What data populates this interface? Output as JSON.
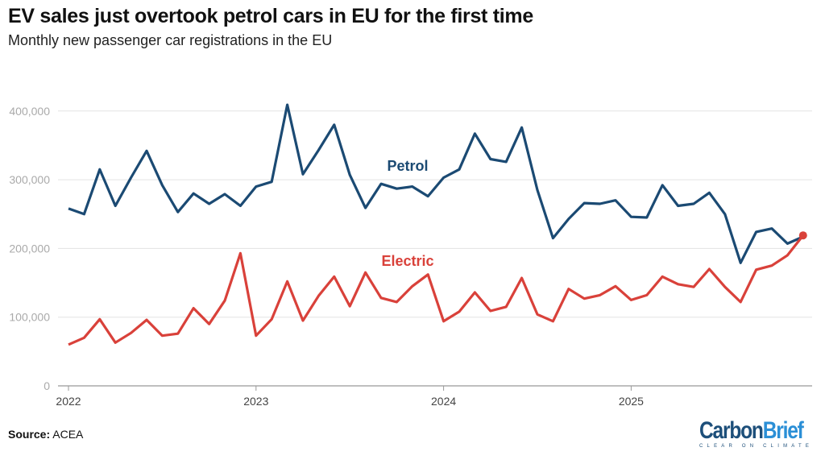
{
  "title": "EV sales just overtook petrol cars in EU for the first time",
  "subtitle": "Monthly new passenger car registrations in the EU",
  "source_label": "Source:",
  "source_value": "ACEA",
  "logo": {
    "brand_part1": "Carbon",
    "brand_part2": "Brief",
    "tagline": "CLEAR ON CLIMATE"
  },
  "chart_data": {
    "type": "line",
    "title": "EV sales just overtook petrol cars in EU for the first time",
    "subtitle": "Monthly new passenger car registrations in the EU",
    "x_start": "2022-01",
    "x_end": "2025-12",
    "x_frequency": "monthly",
    "x_tick_labels": [
      "2022",
      "2023",
      "2024",
      "2025"
    ],
    "y_ticks": [
      0,
      100000,
      200000,
      300000,
      400000
    ],
    "y_tick_labels": [
      "0",
      "100,000",
      "200,000",
      "300,000",
      "400,000"
    ],
    "ylim": [
      0,
      420000
    ],
    "grid": true,
    "series": [
      {
        "name": "Petrol",
        "color": "#1b4a73",
        "values": [
          258000,
          250000,
          315000,
          262000,
          303000,
          342000,
          292000,
          253000,
          280000,
          265000,
          279000,
          262000,
          290000,
          297000,
          409000,
          308000,
          343000,
          380000,
          307000,
          259000,
          294000,
          287000,
          290000,
          276000,
          303000,
          315000,
          367000,
          330000,
          326000,
          376000,
          285000,
          215000,
          243000,
          266000,
          265000,
          270000,
          246000,
          245000,
          292000,
          262000,
          265000,
          281000,
          250000,
          179000,
          224000,
          229000,
          207000,
          217000
        ]
      },
      {
        "name": "Electric",
        "color": "#d9413a",
        "values": [
          60000,
          70000,
          97000,
          63000,
          77000,
          96000,
          73000,
          76000,
          113000,
          90000,
          124000,
          193000,
          73000,
          97000,
          152000,
          95000,
          131000,
          159000,
          116000,
          165000,
          128000,
          122000,
          145000,
          162000,
          94000,
          108000,
          136000,
          109000,
          115000,
          157000,
          104000,
          94000,
          141000,
          127000,
          132000,
          145000,
          125000,
          132000,
          159000,
          148000,
          144000,
          170000,
          144000,
          122000,
          169000,
          175000,
          190000,
          219000
        ]
      }
    ]
  }
}
